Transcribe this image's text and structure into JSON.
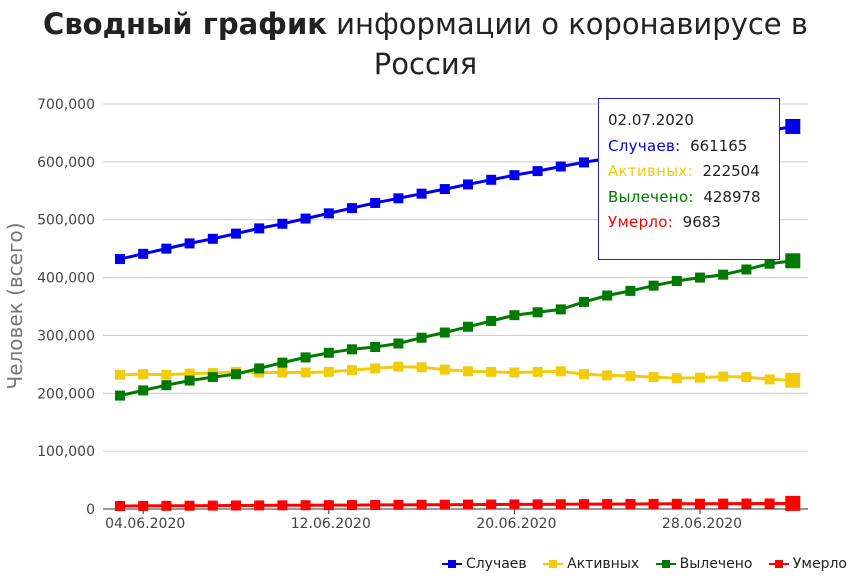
{
  "title": {
    "bold": "Сводный график",
    "rest": " информации о коронавирусе в Россия"
  },
  "chart_data": {
    "type": "line",
    "x": [
      "03.06.2020",
      "04.06.2020",
      "05.06.2020",
      "06.06.2020",
      "07.06.2020",
      "08.06.2020",
      "09.06.2020",
      "10.06.2020",
      "11.06.2020",
      "12.06.2020",
      "13.06.2020",
      "14.06.2020",
      "15.06.2020",
      "16.06.2020",
      "17.06.2020",
      "18.06.2020",
      "19.06.2020",
      "20.06.2020",
      "21.06.2020",
      "22.06.2020",
      "23.06.2020",
      "24.06.2020",
      "25.06.2020",
      "26.06.2020",
      "27.06.2020",
      "28.06.2020",
      "29.06.2020",
      "30.06.2020",
      "01.07.2020",
      "02.07.2020"
    ],
    "x_ticks": [
      "04.06.2020",
      "12.06.2020",
      "20.06.2020",
      "28.06.2020"
    ],
    "y_ticks": [
      "0",
      "100,000",
      "200,000",
      "300,000",
      "400,000",
      "500,000",
      "600,000",
      "700,000"
    ],
    "ylim": [
      0,
      700000
    ],
    "ylabel": "Человек (всего)",
    "xlabel": "",
    "grid": true,
    "legend_position": "bottom-right",
    "series": [
      {
        "name": "Случаев",
        "color": "#0000ee",
        "values": [
          432000,
          441000,
          450000,
          459000,
          467000,
          476000,
          485000,
          493000,
          502000,
          511000,
          520000,
          529000,
          537000,
          545000,
          553000,
          561000,
          569000,
          577000,
          584000,
          592000,
          599000,
          606000,
          613000,
          620000,
          627000,
          634000,
          641000,
          647000,
          654000,
          661165
        ]
      },
      {
        "name": "Активных",
        "color": "#f2cc0c",
        "values": [
          232000,
          233000,
          232000,
          234000,
          235000,
          237000,
          236000,
          236000,
          236000,
          237000,
          240000,
          243000,
          246000,
          245000,
          241000,
          238000,
          237000,
          236000,
          237000,
          238000,
          233000,
          231000,
          230000,
          228000,
          226000,
          227000,
          229000,
          228000,
          224000,
          222504
        ]
      },
      {
        "name": "Вылечено",
        "color": "#007a00",
        "values": [
          196000,
          205000,
          214000,
          222000,
          228000,
          233000,
          243000,
          253000,
          262000,
          270000,
          276000,
          280000,
          286000,
          296000,
          305000,
          315000,
          325000,
          335000,
          340000,
          345000,
          358000,
          369000,
          377000,
          386000,
          394000,
          400000,
          405000,
          414000,
          424000,
          428978
        ]
      },
      {
        "name": "Умерло",
        "color": "#ff0000",
        "values": [
          5200,
          5300,
          5500,
          5700,
          5900,
          6100,
          6200,
          6400,
          6500,
          6700,
          6800,
          7000,
          7100,
          7300,
          7400,
          7600,
          7700,
          7900,
          8000,
          8200,
          8400,
          8500,
          8700,
          8800,
          9000,
          9100,
          9300,
          9400,
          9500,
          9683
        ]
      }
    ]
  },
  "tooltip": {
    "date": "02.07.2020",
    "rows": [
      {
        "label": "Случаев:",
        "value": "661165",
        "color": "#0000ee"
      },
      {
        "label": "Активных:",
        "value": "222504",
        "color": "#f2cc0c"
      },
      {
        "label": "Вылечено:",
        "value": "428978",
        "color": "#007a00"
      },
      {
        "label": "Умерло:",
        "value": "9683",
        "color": "#ff0000"
      }
    ]
  },
  "legend": [
    {
      "label": "Случаев",
      "color": "#0000ee"
    },
    {
      "label": "Активных",
      "color": "#f2cc0c"
    },
    {
      "label": "Вылечено",
      "color": "#007a00"
    },
    {
      "label": "Умерло",
      "color": "#ff0000"
    }
  ]
}
